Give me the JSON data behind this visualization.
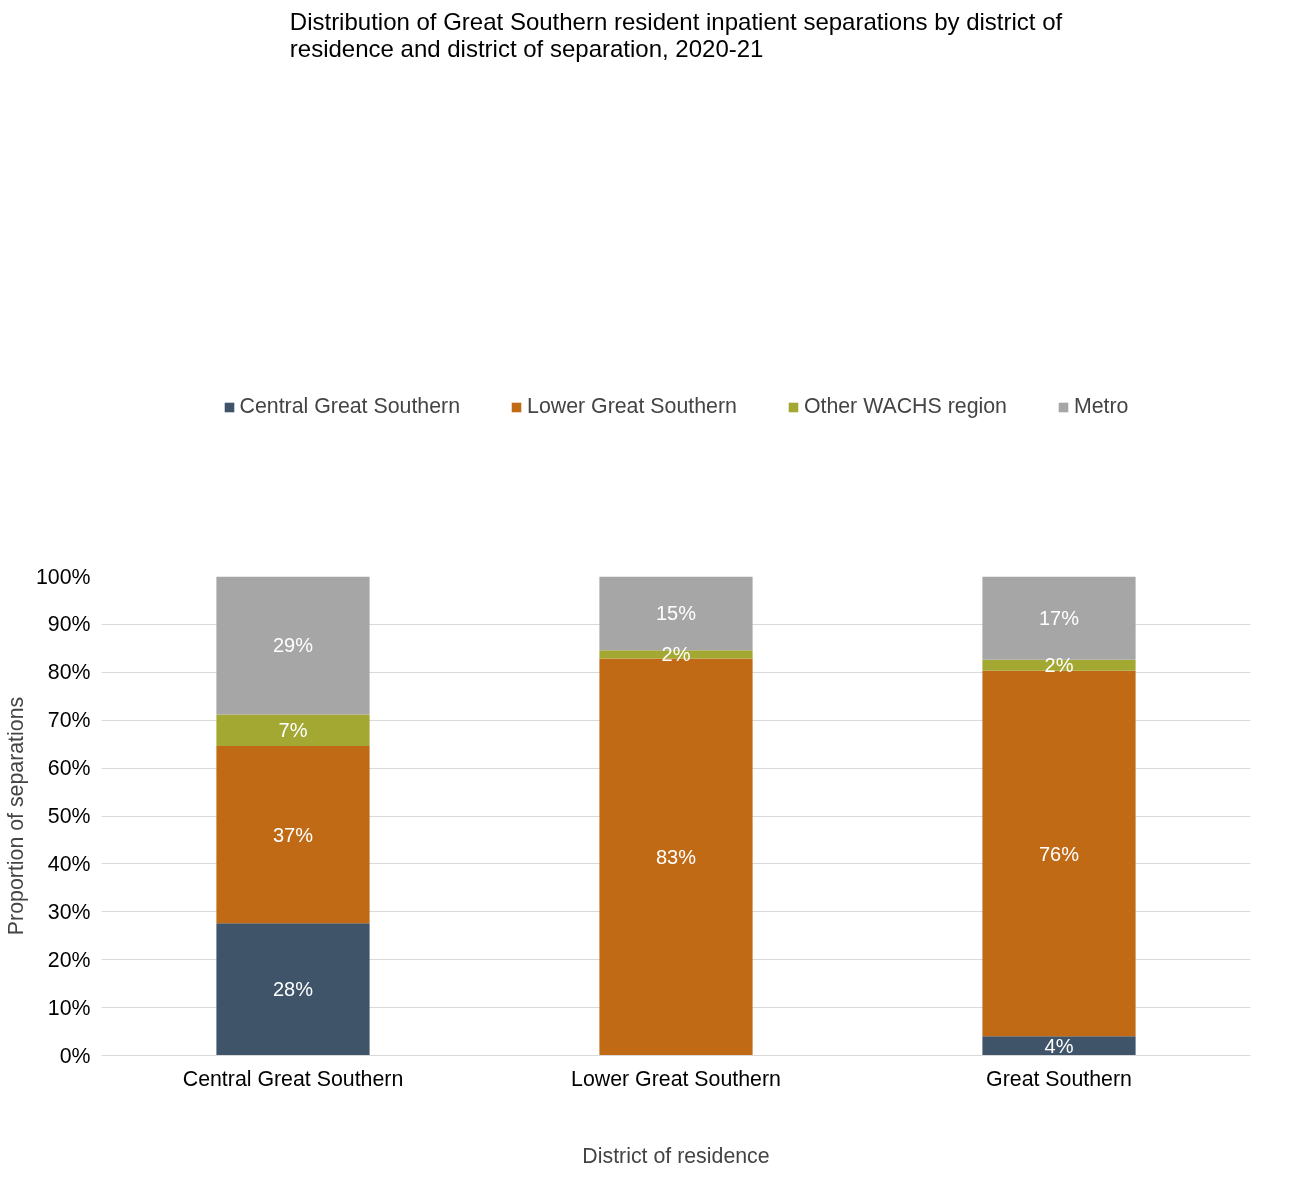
{
  "chart_data": {
    "type": "bar",
    "stacked": true,
    "title": "Distribution of Great Southern resident inpatient separations by district of residence and district of separation, 2020-21",
    "xlabel": "District of residence",
    "ylabel": "Proportion of separations",
    "categories": [
      "Central Great Southern",
      "Lower Great Southern",
      "Great Southern"
    ],
    "series": [
      {
        "name": "Central Great Southern",
        "color": "#3f5468",
        "values": [
          27.6,
          0,
          4.0
        ],
        "value_labels": [
          "28%",
          null,
          "4%"
        ]
      },
      {
        "name": "Lower Great Southern",
        "color": "#c06a16",
        "values": [
          37.0,
          82.9,
          76.3
        ],
        "value_labels": [
          "37%",
          "83%",
          "76%"
        ]
      },
      {
        "name": "Other WACHS region",
        "color": "#a3a833",
        "values": [
          6.6,
          1.7,
          2.3
        ],
        "value_labels": [
          "7%",
          "2%",
          "2%"
        ]
      },
      {
        "name": "Metro",
        "color": "#a6a6a6",
        "values": [
          28.8,
          15.4,
          17.4
        ],
        "value_labels": [
          "29%",
          "15%",
          "17%"
        ]
      }
    ],
    "ylim": [
      0,
      100
    ],
    "yticks": [
      {
        "value": 0,
        "label": "0%"
      },
      {
        "value": 10,
        "label": "10%"
      },
      {
        "value": 20,
        "label": "20%"
      },
      {
        "value": 30,
        "label": "30%"
      },
      {
        "value": 40,
        "label": "40%"
      },
      {
        "value": 50,
        "label": "50%"
      },
      {
        "value": 60,
        "label": "60%"
      },
      {
        "value": 70,
        "label": "70%"
      },
      {
        "value": 80,
        "label": "80%"
      },
      {
        "value": 90,
        "label": "90%"
      },
      {
        "value": 100,
        "label": "100%"
      }
    ],
    "grid": "y",
    "legend": "top"
  }
}
